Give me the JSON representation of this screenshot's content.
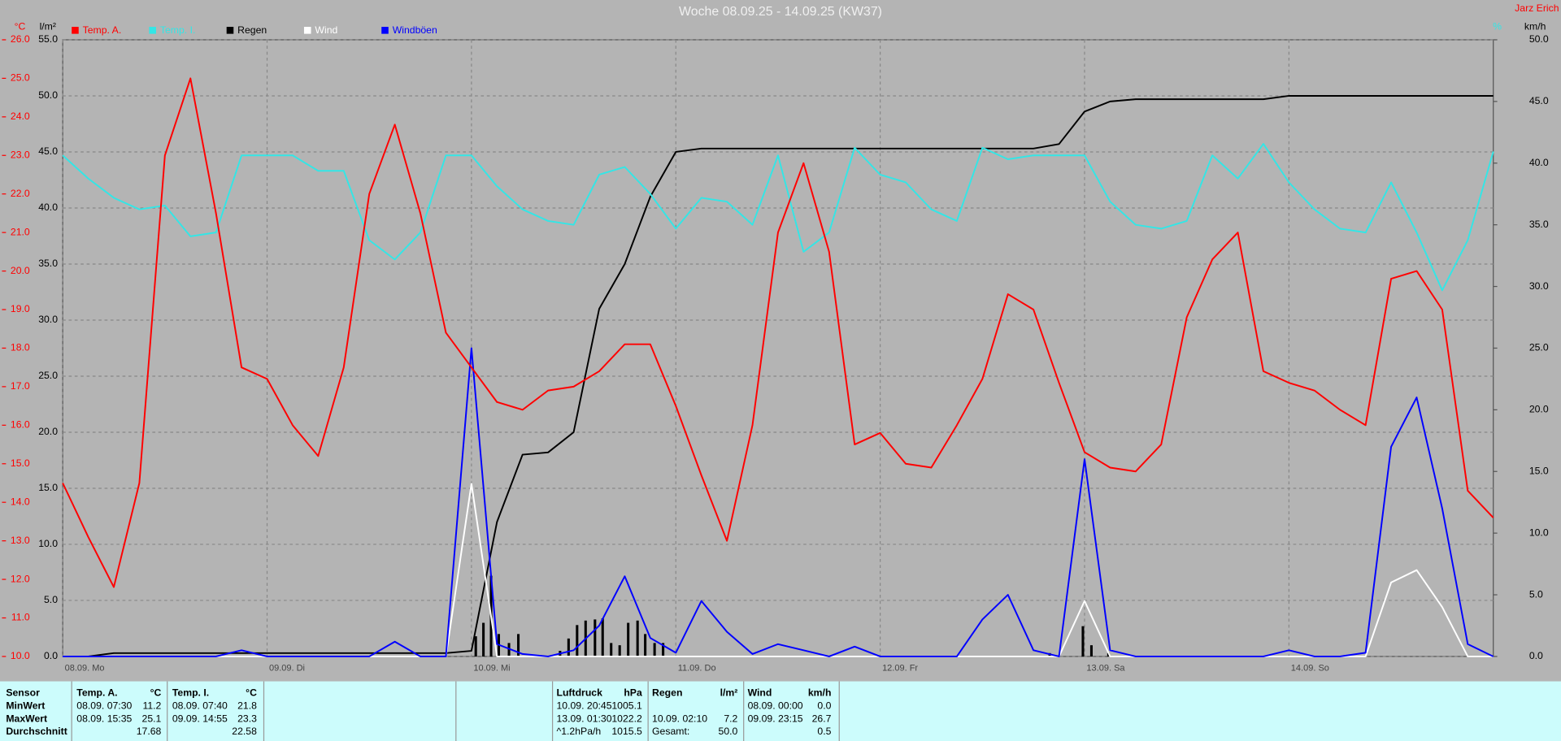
{
  "chart_data": {
    "type": "line",
    "title": "Woche 08.09.25 - 14.09.25 (KW37)",
    "author": "Jarz Erich",
    "y_label": "°C",
    "y2_label": "l/m²",
    "y3_label": "km/h",
    "y4_label": "%",
    "x": [
      0,
      3,
      6,
      9,
      12,
      15,
      18,
      21,
      24,
      27,
      30,
      33,
      36,
      39,
      42,
      45,
      48,
      51,
      54,
      57,
      60,
      63,
      66,
      69,
      72,
      75,
      78,
      81,
      84,
      87,
      90,
      93,
      96,
      99,
      102,
      105,
      108,
      111,
      114,
      117,
      120,
      123,
      126,
      129,
      132,
      135,
      138,
      141,
      144,
      147,
      150,
      153,
      156,
      159,
      162,
      165,
      168
    ],
    "xlim": [
      0,
      168
    ],
    "xticks": [
      {
        "value": 0,
        "label": "08.09.  Mo"
      },
      {
        "value": 24,
        "label": "09.09.  Di"
      },
      {
        "value": 48,
        "label": "10.09.  Mi"
      },
      {
        "value": 72,
        "label": "11.09.  Do"
      },
      {
        "value": 96,
        "label": "12.09.  Fr"
      },
      {
        "value": 120,
        "label": "13.09.  Sa"
      },
      {
        "value": 144,
        "label": "14.09.  So"
      }
    ],
    "ylim": [
      10,
      26
    ],
    "yticks": [
      {
        "value": 10,
        "label": "10.0"
      },
      {
        "value": 11,
        "label": "11.0"
      },
      {
        "value": 12,
        "label": "12.0"
      },
      {
        "value": 13,
        "label": "13.0"
      },
      {
        "value": 14,
        "label": "14.0"
      },
      {
        "value": 15,
        "label": "15.0"
      },
      {
        "value": 16,
        "label": "16.0"
      },
      {
        "value": 17,
        "label": "17.0"
      },
      {
        "value": 18,
        "label": "18.0"
      },
      {
        "value": 19,
        "label": "19.0"
      },
      {
        "value": 20,
        "label": "20.0"
      },
      {
        "value": 21,
        "label": "21.0"
      },
      {
        "value": 22,
        "label": "22.0"
      },
      {
        "value": 23,
        "label": "23.0"
      },
      {
        "value": 24,
        "label": "24.0"
      },
      {
        "value": 25,
        "label": "25.0"
      },
      {
        "value": 26,
        "label": "26.0"
      }
    ],
    "y2lim": [
      0,
      55
    ],
    "y2ticks": [
      {
        "value": 0,
        "label": "0.0"
      },
      {
        "value": 5,
        "label": "5.0"
      },
      {
        "value": 10,
        "label": "10.0"
      },
      {
        "value": 15,
        "label": "15.0"
      },
      {
        "value": 20,
        "label": "20.0"
      },
      {
        "value": 25,
        "label": "25.0"
      },
      {
        "value": 30,
        "label": "30.0"
      },
      {
        "value": 35,
        "label": "35.0"
      },
      {
        "value": 40,
        "label": "40.0"
      },
      {
        "value": 45,
        "label": "45.0"
      },
      {
        "value": 50,
        "label": "50.0"
      },
      {
        "value": 55,
        "label": "55.0"
      }
    ],
    "y3lim": [
      0,
      50
    ],
    "y3ticks": [
      {
        "value": 0,
        "label": "0.0"
      },
      {
        "value": 5,
        "label": "5.0"
      },
      {
        "value": 10,
        "label": "10.0"
      },
      {
        "value": 15,
        "label": "15.0"
      },
      {
        "value": 20,
        "label": "20.0"
      },
      {
        "value": 25,
        "label": "25.0"
      },
      {
        "value": 30,
        "label": "30.0"
      },
      {
        "value": 35,
        "label": "35.0"
      },
      {
        "value": 40,
        "label": "40.0"
      },
      {
        "value": 45,
        "label": "45.0"
      },
      {
        "value": 50,
        "label": "50.0"
      }
    ],
    "grid": true,
    "series": [
      {
        "name": "Temp. A.",
        "color": "#ff0000",
        "axis": "y",
        "values": [
          14.5,
          13.1,
          11.8,
          14.5,
          23.0,
          25.0,
          21.5,
          17.5,
          17.2,
          16.0,
          15.2,
          17.5,
          22.0,
          23.8,
          21.5,
          18.4,
          17.5,
          16.6,
          16.4,
          16.9,
          17.0,
          17.4,
          18.1,
          18.1,
          16.5,
          14.7,
          13.0,
          16.0,
          21.0,
          22.8,
          20.5,
          15.5,
          15.8,
          15.0,
          14.9,
          16.0,
          17.2,
          19.4,
          19.0,
          17.1,
          15.3,
          14.9,
          14.8,
          15.5,
          18.8,
          20.3,
          21.0,
          17.4,
          17.1,
          16.9,
          16.4,
          16.0,
          19.8,
          20.0,
          19.0,
          14.3,
          13.6
        ]
      },
      {
        "name": "Temp. I.",
        "color": "#33e6e6",
        "axis": "y",
        "values": [
          23.0,
          22.4,
          21.9,
          21.6,
          21.7,
          20.9,
          21.0,
          23.0,
          23.0,
          23.0,
          22.6,
          22.6,
          20.8,
          20.3,
          21.0,
          23.0,
          23.0,
          22.2,
          21.6,
          21.3,
          21.2,
          22.5,
          22.7,
          22.0,
          21.1,
          21.9,
          21.8,
          21.2,
          23.0,
          20.5,
          21.0,
          23.2,
          22.5,
          22.3,
          21.6,
          21.3,
          23.2,
          22.9,
          23.0,
          23.0,
          23.0,
          21.8,
          21.2,
          21.1,
          21.3,
          23.0,
          22.4,
          23.3,
          22.3,
          21.6,
          21.1,
          21.0,
          22.3,
          21.0,
          19.5,
          20.8,
          23.1
        ]
      },
      {
        "name": "Regen",
        "color": "#000000",
        "axis": "y2",
        "values": [
          0,
          0,
          0.3,
          0.3,
          0.3,
          0.3,
          0.3,
          0.3,
          0.3,
          0.3,
          0.3,
          0.3,
          0.3,
          0.3,
          0.3,
          0.3,
          0.5,
          12,
          18,
          18.2,
          20,
          31,
          35,
          41,
          45.0,
          45.3,
          45.3,
          45.3,
          45.3,
          45.3,
          45.3,
          45.3,
          45.3,
          45.3,
          45.3,
          45.3,
          45.3,
          45.3,
          45.3,
          45.7,
          48.6,
          49.5,
          49.7,
          49.7,
          49.7,
          49.7,
          49.7,
          49.7,
          50.0,
          50.0,
          50.0,
          50.0,
          50.0,
          50.0,
          50.0,
          50.0,
          50.0
        ],
        "bars": {
          "x": [
            48.5,
            49.4,
            50.3,
            51.2,
            52.4,
            53.5,
            58.4,
            59.4,
            60.4,
            61.4,
            62.5,
            63.4,
            64.4,
            65.4,
            66.4,
            67.5,
            68.4,
            69.5,
            70.5,
            115.9,
            119.8,
            120.8,
            122.8
          ],
          "values": [
            1.8,
            3.0,
            7.2,
            2.0,
            1.2,
            2.0,
            0.5,
            1.6,
            2.8,
            3.2,
            3.3,
            3.4,
            1.2,
            1.0,
            3.0,
            3.2,
            2.0,
            1.2,
            1.2,
            0.3,
            2.7,
            1.0,
            0.3
          ]
        }
      },
      {
        "name": "Wind",
        "color": "#ffffff",
        "axis": "y3",
        "values": [
          0,
          0,
          0,
          0,
          0,
          0,
          0,
          0,
          0,
          0,
          0,
          0,
          0,
          0,
          0,
          0,
          14,
          0,
          0,
          0,
          0,
          0,
          0,
          0,
          0,
          0,
          0,
          0,
          0,
          0,
          0,
          0,
          0,
          0,
          0,
          0,
          0,
          0,
          0,
          0,
          4.5,
          0,
          0,
          0,
          0,
          0,
          0,
          0,
          0,
          0,
          0,
          0,
          6,
          7,
          4,
          0,
          0
        ]
      },
      {
        "name": "Windböen",
        "color": "#0000ff",
        "axis": "y3",
        "values": [
          0,
          0,
          0,
          0,
          0,
          0,
          0,
          0.5,
          0,
          0,
          0,
          0,
          0,
          1.2,
          0,
          0,
          25,
          1,
          0.2,
          0,
          0.5,
          2.5,
          6.5,
          1.5,
          0.3,
          4.5,
          2,
          0.2,
          1,
          0.5,
          0,
          0.8,
          0,
          0,
          0,
          0,
          3,
          5,
          0.5,
          0,
          16,
          0.5,
          0,
          0,
          0,
          0,
          0,
          0,
          0.5,
          0,
          0,
          0.3,
          17,
          21,
          12,
          1,
          0
        ]
      }
    ]
  },
  "stats_table": {
    "columns": [
      {
        "name": "Sensor"
      },
      {
        "name": "Temp. A.",
        "unit": "°C"
      },
      {
        "name": "Temp. I.",
        "unit": "°C"
      },
      {
        "name": "Luftdruck",
        "unit": "hPa"
      },
      {
        "name": "Regen",
        "unit": "l/m²"
      },
      {
        "name": "Wind",
        "unit": "km/h"
      }
    ],
    "rows": [
      {
        "label": "MinWert",
        "cells": [
          [
            "08.09.  07:30",
            "11.2"
          ],
          [
            "08.09.  07:40",
            "21.8"
          ],
          [
            "10.09.  20:45",
            "1005.1"
          ],
          [
            null,
            null
          ],
          [
            "08.09.  00:00",
            "0.0"
          ]
        ]
      },
      {
        "label": "MaxWert",
        "cells": [
          [
            "08.09.  15:35",
            "25.1"
          ],
          [
            "09.09.  14:55",
            "23.3"
          ],
          [
            "13.09.  01:30",
            "1022.2"
          ],
          [
            "10.09.  02:10",
            "7.2"
          ],
          [
            "09.09.  23:15",
            "26.7"
          ]
        ]
      },
      {
        "label": "Durchschnitt",
        "cells": [
          [
            null,
            "17.68"
          ],
          [
            null,
            "22.58"
          ],
          [
            "^1.2hPa/h",
            "1015.5"
          ],
          [
            "Gesamt:",
            "50.0"
          ],
          [
            null,
            "0.5"
          ]
        ]
      }
    ]
  }
}
